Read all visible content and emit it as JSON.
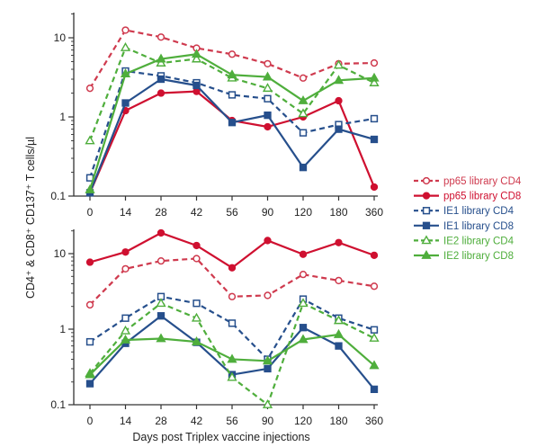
{
  "chart_data": {
    "type": "line",
    "ylabel": "CD4⁺ & CD8⁺ CD137⁺ T cells/µl",
    "xlabel": "Days post Triplex vaccine injections",
    "x_categories": [
      "0",
      "14",
      "28",
      "42",
      "56",
      "90",
      "120",
      "180",
      "360"
    ],
    "yscale": "log",
    "ylim": [
      0.1,
      20
    ],
    "y_ticks": [
      "10",
      "1",
      "0.1"
    ],
    "legend_position": "right",
    "series_styles": [
      {
        "name": "pp65 library CD4",
        "color": "#cf3a4e",
        "dashed": true,
        "marker": "circle-open"
      },
      {
        "name": "pp65 library CD8",
        "color": "#cf1030",
        "dashed": false,
        "marker": "circle-filled"
      },
      {
        "name": "IE1 library CD4",
        "color": "#264f8c",
        "dashed": true,
        "marker": "square-open"
      },
      {
        "name": "IE1 library CD8",
        "color": "#264f8c",
        "dashed": false,
        "marker": "square-filled"
      },
      {
        "name": "IE2 library CD4",
        "color": "#4fae3c",
        "dashed": true,
        "marker": "triangle-open"
      },
      {
        "name": "IE2 library CD8",
        "color": "#4fae3c",
        "dashed": false,
        "marker": "triangle-filled"
      }
    ],
    "panels": [
      {
        "series": [
          {
            "name": "pp65 library CD4",
            "values": [
              2.3,
              12.5,
              10.2,
              7.4,
              6.2,
              4.7,
              3.1,
              4.7,
              4.8
            ]
          },
          {
            "name": "pp65 library CD8",
            "values": [
              0.11,
              1.2,
              2.0,
              2.1,
              0.9,
              0.75,
              1.0,
              1.6,
              0.13
            ]
          },
          {
            "name": "IE1 library CD4",
            "values": [
              0.17,
              3.8,
              3.3,
              2.7,
              1.9,
              1.7,
              0.63,
              0.8,
              0.95
            ]
          },
          {
            "name": "IE1 library CD8",
            "values": [
              0.11,
              1.5,
              3.0,
              2.5,
              0.85,
              1.05,
              0.23,
              0.7,
              0.52
            ]
          },
          {
            "name": "IE2 library CD4",
            "values": [
              0.5,
              7.5,
              4.8,
              5.4,
              3.1,
              2.3,
              1.1,
              4.5,
              2.7
            ]
          },
          {
            "name": "IE2 library CD8",
            "values": [
              0.12,
              3.5,
              5.4,
              6.2,
              3.4,
              3.2,
              1.6,
              2.9,
              3.1
            ]
          }
        ]
      },
      {
        "series": [
          {
            "name": "pp65 library CD4",
            "values": [
              2.1,
              6.3,
              8.0,
              8.6,
              2.7,
              2.8,
              5.3,
              4.4,
              3.7
            ]
          },
          {
            "name": "pp65 library CD8",
            "values": [
              7.7,
              10.5,
              18.8,
              12.8,
              6.5,
              14.9,
              9.8,
              14.0,
              9.5
            ]
          },
          {
            "name": "IE1 library CD4",
            "values": [
              0.68,
              1.4,
              2.7,
              2.2,
              1.2,
              0.4,
              2.5,
              1.4,
              0.98
            ]
          },
          {
            "name": "IE1 library CD8",
            "values": [
              0.19,
              0.65,
              1.5,
              0.67,
              0.25,
              0.3,
              1.05,
              0.6,
              0.16
            ]
          },
          {
            "name": "IE2 library CD4",
            "values": [
              0.26,
              0.95,
              2.2,
              1.4,
              0.23,
              0.1,
              2.2,
              1.3,
              0.76
            ]
          },
          {
            "name": "IE2 library CD8",
            "values": [
              0.25,
              0.72,
              0.75,
              0.68,
              0.4,
              0.38,
              0.73,
              0.85,
              0.33
            ]
          }
        ]
      }
    ]
  }
}
